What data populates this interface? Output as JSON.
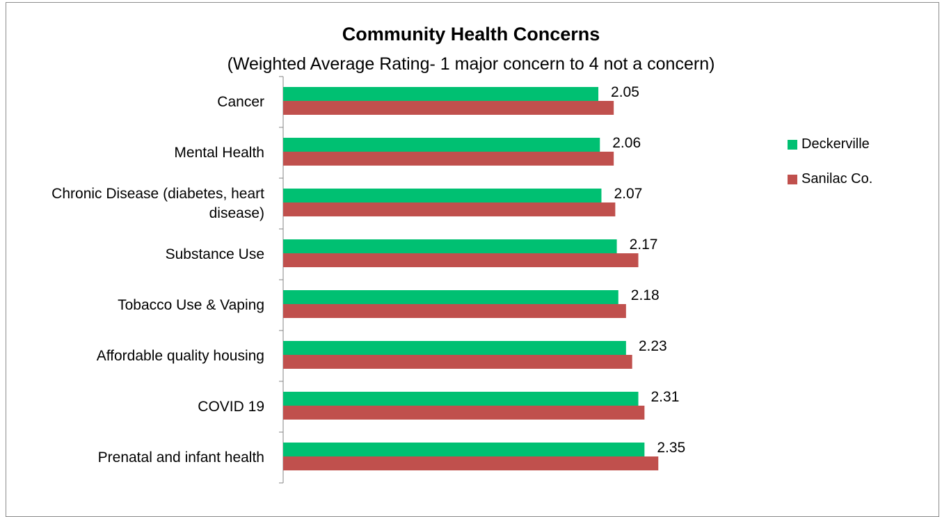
{
  "chart_data": {
    "type": "bar",
    "orientation": "horizontal",
    "title": "Community Health Concerns",
    "subtitle": "(Weighted Average Rating- 1 major concern to 4 not a concern)",
    "categories": [
      "Cancer",
      "Mental Health",
      "Chronic Disease (diabetes, heart disease)",
      "Substance Use",
      "Tobacco Use & Vaping",
      "Affordable quality housing",
      "COVID 19",
      "Prenatal and infant health"
    ],
    "category_lines": [
      [
        "Cancer"
      ],
      [
        "Mental Health"
      ],
      [
        "Chronic Disease (diabetes, heart",
        "disease)"
      ],
      [
        "Substance Use"
      ],
      [
        "Tobacco Use & Vaping"
      ],
      [
        "Affordable quality housing"
      ],
      [
        "COVID 19"
      ],
      [
        "Prenatal and infant health"
      ]
    ],
    "series": [
      {
        "name": "Deckerville",
        "color": "#00C072",
        "values": [
          2.05,
          2.06,
          2.07,
          2.17,
          2.18,
          2.23,
          2.31,
          2.35
        ]
      },
      {
        "name": "Sanilac Co.",
        "color": "#C0504D",
        "values": [
          2.15,
          2.15,
          2.16,
          2.31,
          2.23,
          2.27,
          2.35,
          2.44
        ]
      }
    ],
    "data_labels": [
      "2.05",
      "2.06",
      "2.07",
      "2.17",
      "2.18",
      "2.23",
      "2.31",
      "2.35"
    ],
    "xlim": [
      0,
      2.8
    ],
    "grid": false,
    "legend": "right"
  }
}
